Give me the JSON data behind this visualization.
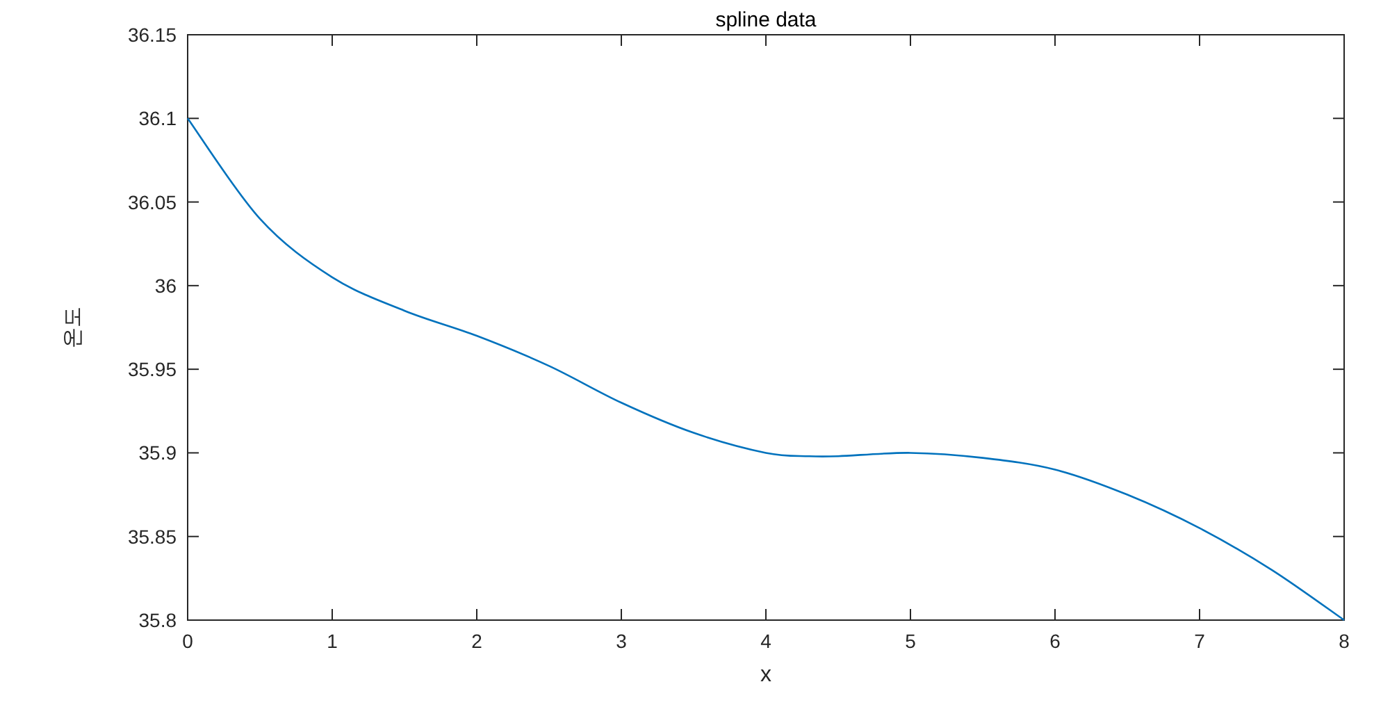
{
  "chart_data": {
    "type": "line",
    "title": "spline data",
    "xlabel": "x",
    "ylabel": "온도",
    "x": [
      0,
      0.5,
      1,
      1.5,
      2,
      2.5,
      3,
      3.5,
      4,
      4.3,
      4.5,
      5,
      5.5,
      6,
      6.5,
      7,
      7.5,
      8
    ],
    "series": [
      {
        "color": "#0072bd",
        "values": [
          36.1,
          36.04,
          36.005,
          35.985,
          35.97,
          35.952,
          35.93,
          35.912,
          35.9,
          35.898,
          35.898,
          35.9,
          35.897,
          35.89,
          35.875,
          35.855,
          35.83,
          35.8
        ]
      }
    ],
    "xlim": [
      0,
      8
    ],
    "xticks": [
      0,
      1,
      2,
      3,
      4,
      5,
      6,
      7,
      8
    ],
    "ylim": [
      35.8,
      36.15
    ],
    "yticks": [
      35.8,
      35.85,
      35.9,
      35.95,
      36,
      36.05,
      36.1,
      36.15
    ],
    "grid": false
  }
}
